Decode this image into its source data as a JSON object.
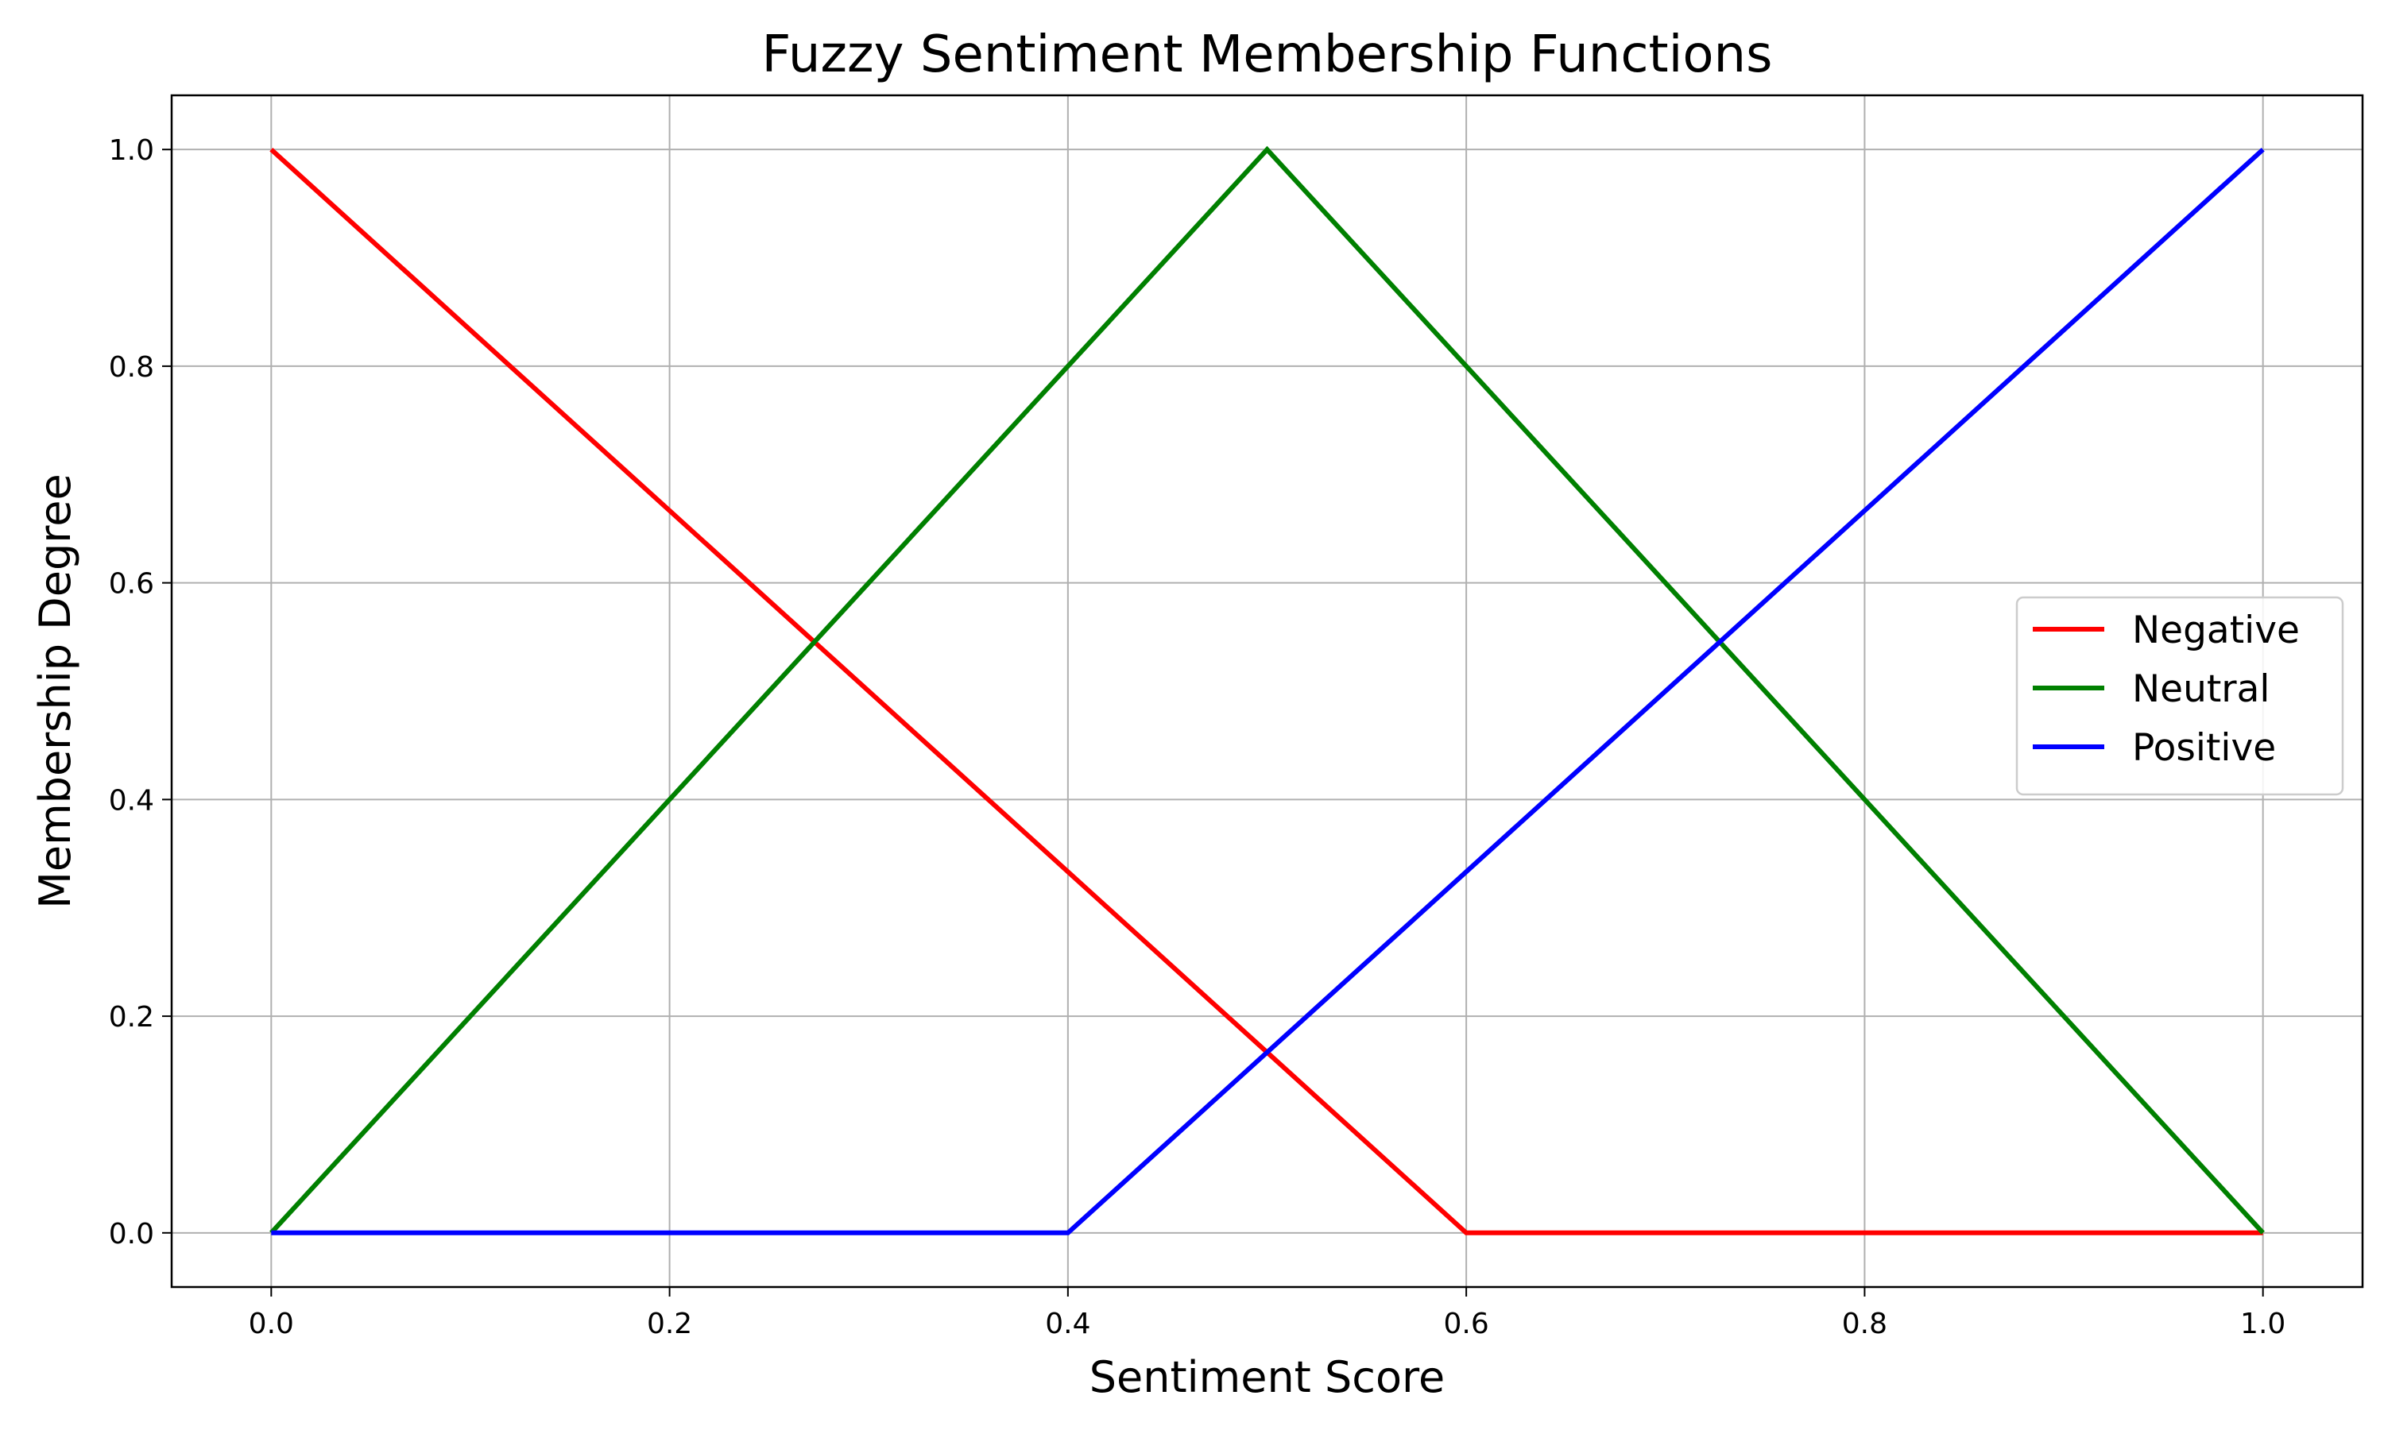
{
  "chart_data": {
    "type": "line",
    "title": "Fuzzy Sentiment Membership Functions",
    "xlabel": "Sentiment Score",
    "ylabel": "Membership Degree",
    "xlim": [
      -0.05,
      1.05
    ],
    "ylim": [
      -0.05,
      1.05
    ],
    "xticks": [
      0.0,
      0.2,
      0.4,
      0.6,
      0.8,
      1.0
    ],
    "xtick_labels": [
      "0.0",
      "0.2",
      "0.4",
      "0.6",
      "0.8",
      "1.0"
    ],
    "yticks": [
      0.0,
      0.2,
      0.4,
      0.6,
      0.8,
      1.0
    ],
    "ytick_labels": [
      "0.0",
      "0.2",
      "0.4",
      "0.6",
      "0.8",
      "1.0"
    ],
    "grid": true,
    "legend_position": "center-right",
    "series": [
      {
        "name": "Negative",
        "color": "#ff0000",
        "x": [
          0.0,
          0.6,
          1.0
        ],
        "y": [
          1.0,
          0.0,
          0.0
        ]
      },
      {
        "name": "Neutral",
        "color": "#008000",
        "x": [
          0.0,
          0.5,
          1.0
        ],
        "y": [
          0.0,
          1.0,
          0.0
        ]
      },
      {
        "name": "Positive",
        "color": "#0000ff",
        "x": [
          0.0,
          0.4,
          1.0
        ],
        "y": [
          0.0,
          0.0,
          1.0
        ]
      }
    ]
  }
}
